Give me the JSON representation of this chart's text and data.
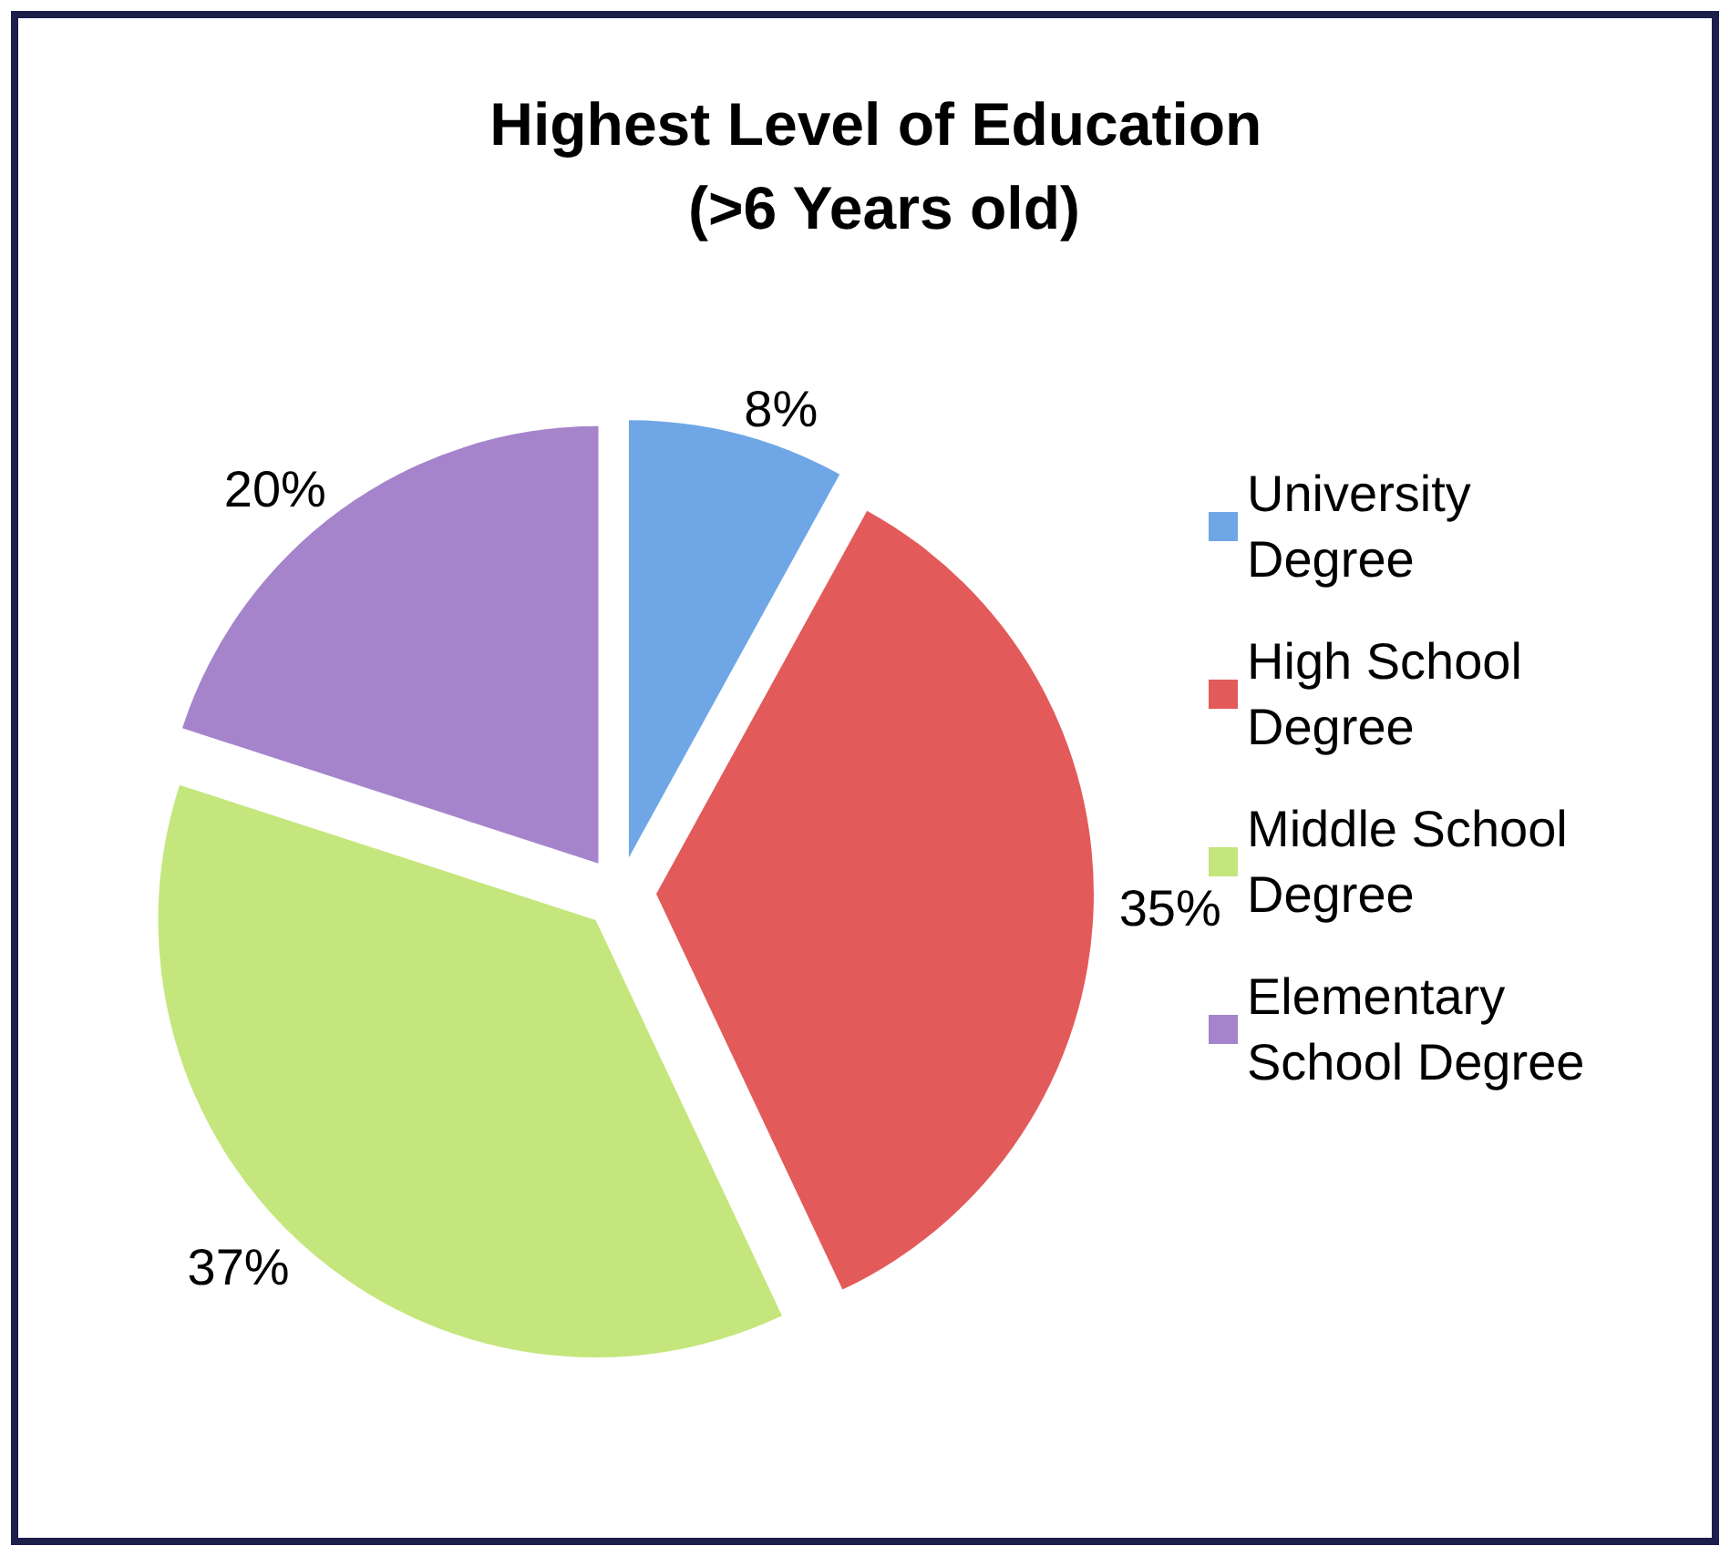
{
  "chart_data": {
    "type": "pie",
    "title": "Highest Level of Education (>6 Years old)",
    "categories": [
      "University Degree",
      "High School Degree",
      "Middle School Degree",
      "Elementary School Degree"
    ],
    "values": [
      8,
      35,
      37,
      20
    ],
    "colors": [
      "#6fa6e6",
      "#e35a5a",
      "#c4e67c",
      "#a584cc"
    ],
    "value_labels": [
      "8%",
      "35%",
      "37%",
      "20%"
    ],
    "legend": "right"
  }
}
